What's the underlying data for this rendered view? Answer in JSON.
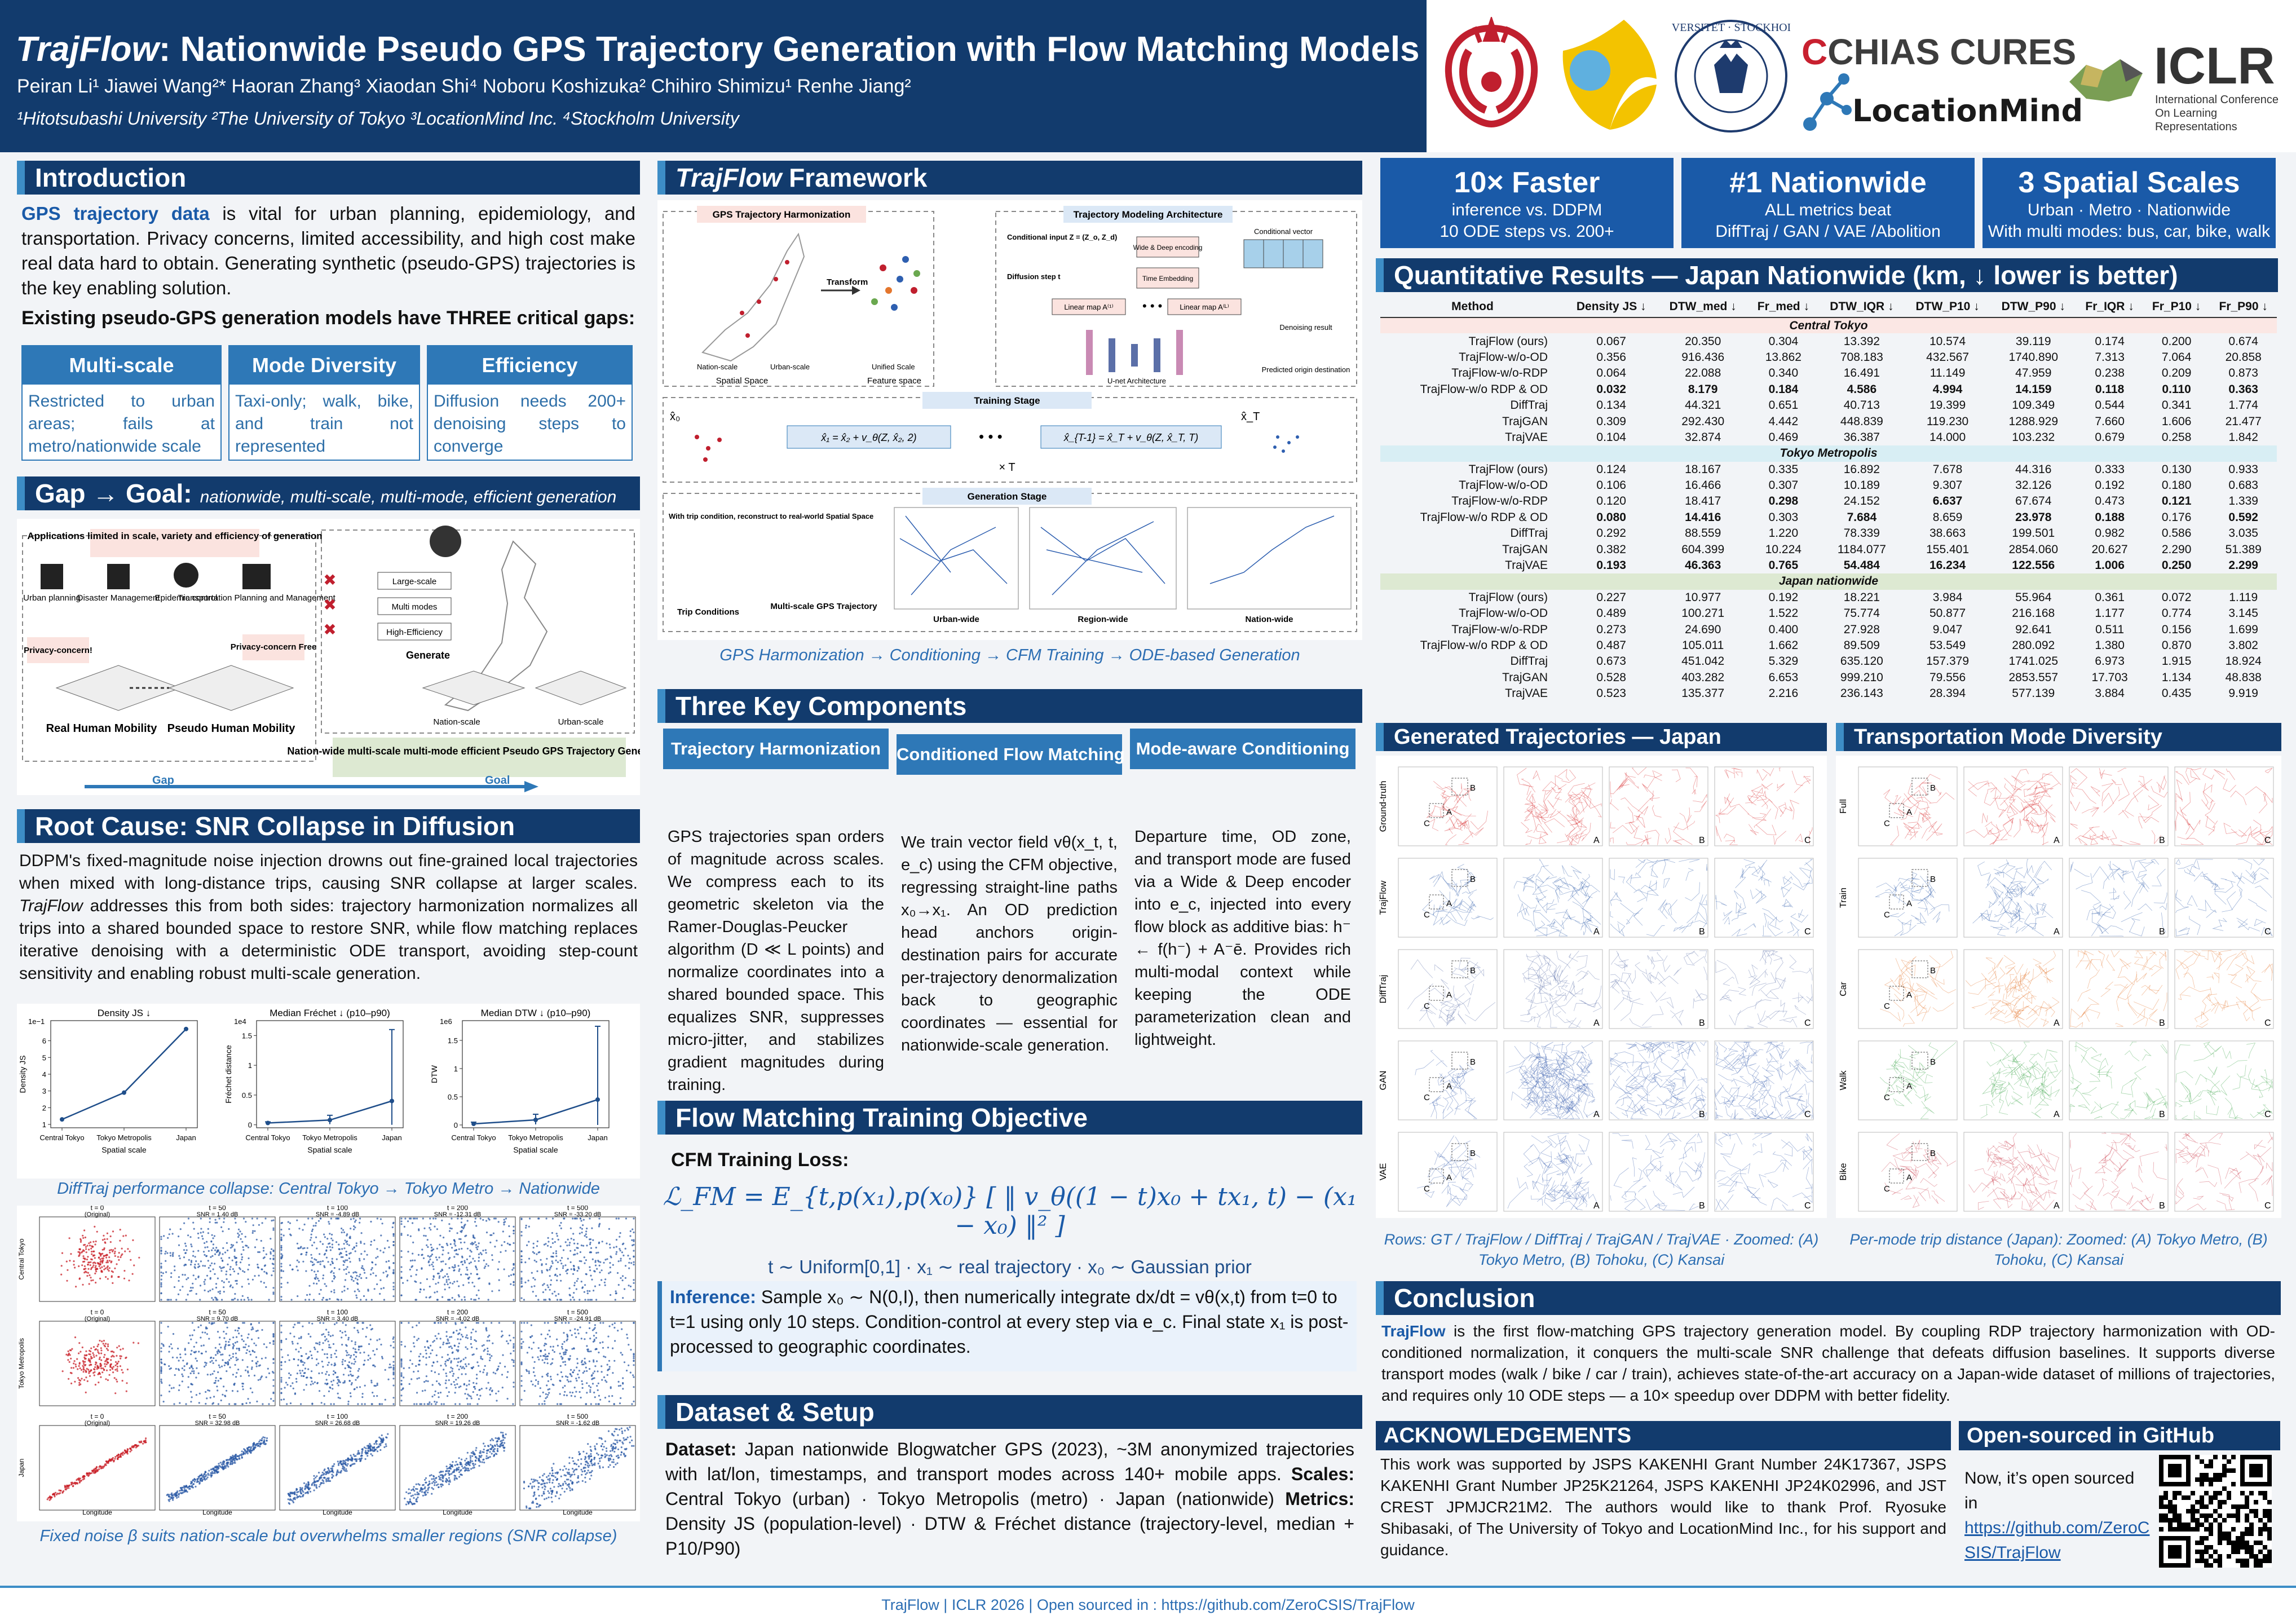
{
  "header": {
    "title_italic": "TrajFlow",
    "title_rest": ": Nationwide Pseudo GPS Trajectory Generation with Flow Matching Models",
    "authors": "Peiran Li¹   Jiawei Wang²*   Haoran Zhang³   Xiaodan Shi⁴   Noboru Koshizuka²   Chihiro Shimizu¹   Renhe Jiang²",
    "affiliations": "¹Hitotsubashi University   ²The University of Tokyo   ³LocationMind Inc.  ⁴Stockholm University",
    "logos": {
      "chias": "CHIAS CURES",
      "chias_c": "C",
      "locationmind": "LocationMind",
      "iclr": "ICLR",
      "iclr_sub": "International Conference On Learning Representations",
      "stockholm_ring": "UNIVERSITET · STOCKHOLMS"
    }
  },
  "intro": {
    "heading": "Introduction",
    "lead": "GPS trajectory data",
    "text": " is vital for urban planning, epidemiology, and transportation. Privacy concerns, limited accessibility, and high cost make real data hard to obtain. Generating synthetic (pseudo-GPS) trajectories is the key enabling solution.",
    "gaps_title": "Existing pseudo-GPS generation models have THREE critical gaps:",
    "gaps": [
      {
        "title": "Multi-scale",
        "text": "Restricted to urban areas; fails at metro/nationwide scale"
      },
      {
        "title": "Mode Diversity",
        "text": "Taxi-only; walk, bike, and train not represented"
      },
      {
        "title": "Efficiency",
        "text": "Diffusion needs 200+ denoising steps to converge"
      }
    ]
  },
  "gapgoal": {
    "heading": "Gap → Goal:",
    "sub": "nationwide, multi-scale, multi-mode, efficient generation",
    "limited": "Applications limited in scale, variety and efficiency of generation",
    "apps": [
      "Urban planning",
      "Disaster Management",
      "Epidemic control",
      "Transportation Planning and Management"
    ],
    "privacy": "Privacy-concern!",
    "privacy_free": "Privacy-concern Free",
    "real": "Real Human Mobility",
    "pseudo": "Pseudo Human Mobility",
    "generate": "Generate",
    "goals": [
      "Large-scale",
      "Multi modes",
      "High-Efficiency"
    ],
    "scales": [
      "Nation-scale",
      "Urban-scale"
    ],
    "goal_box": "Nation-wide multi-scale multi-mode efficient Pseudo GPS Trajectory Generation",
    "gap_label": "Gap",
    "goal_label": "Goal"
  },
  "root": {
    "heading": "Root Cause: SNR Collapse in Diffusion",
    "text_a": "DDPM's fixed-magnitude noise injection drowns out fine-grained local trajectories when mixed with long-distance trips, causing SNR collapse at larger scales. ",
    "text_i": "TrajFlow",
    "text_b": " addresses this from both sides: trajectory harmonization normalizes all trips into a shared bounded space to restore SNR, while flow matching replaces iterative denoising with a deterministic ODE transport, avoiding step-count sensitivity and enabling robust multi-scale generation.",
    "caption1": "DiffTraj performance collapse: Central Tokyo → Tokyo Metro → Nationwide",
    "caption2": "Fixed noise β suits nation-scale but overwhelms smaller regions (SNR collapse)",
    "xticks": [
      "Central Tokyo",
      "Tokyo Metropolis",
      "Japan"
    ],
    "xlabel": "Spatial scale",
    "snr_rows": [
      "Central Tokyo",
      "Tokyo Metropolis",
      "Japan"
    ],
    "snr_cols": [
      "t = 0",
      "t = 50",
      "t = 100",
      "t = 200",
      "t = 500"
    ],
    "snr_original": "(Original)",
    "snr_values": [
      [
        "SNR = 1.40 dB",
        "SNR = -4.89 dB",
        "SNR = -12.31 dB",
        "SNR = -33.20 dB"
      ],
      [
        "SNR = 9.70 dB",
        "SNR = 3.40 dB",
        "SNR = -4.02 dB",
        "SNR = -24.91 dB"
      ],
      [
        "SNR = 32.98 dB",
        "SNR = 26.68 dB",
        "SNR = 19.26 dB",
        "SNR = -1.62 dB"
      ]
    ],
    "snr_xlabel": "Longitude",
    "snr_ylabel": "Latitude"
  },
  "chart_data": [
    {
      "type": "line",
      "title": "Density JS ↓",
      "xlabel": "Spatial scale",
      "ylabel": "Density JS",
      "exponent": "1e−1",
      "categories": [
        "Central Tokyo",
        "Tokyo Metropolis",
        "Japan"
      ],
      "values": [
        1.3,
        2.9,
        6.7
      ],
      "ylim": [
        0.8,
        7.2
      ],
      "yticks": [
        1,
        2,
        3,
        4,
        5,
        6
      ]
    },
    {
      "type": "line",
      "title": "Median Fréchet ↓ (p10–p90)",
      "xlabel": "Spatial scale",
      "ylabel": "Fréchet distance",
      "exponent": "1e4",
      "categories": [
        "Central Tokyo",
        "Tokyo Metropolis",
        "Japan"
      ],
      "values": [
        0.03,
        0.08,
        0.4
      ],
      "err_low": [
        0.0,
        0.01,
        0.0
      ],
      "err_high": [
        0.05,
        0.16,
        1.6
      ],
      "ylim": [
        -0.05,
        1.75
      ],
      "yticks": [
        0.0,
        0.5,
        1.0,
        1.5
      ]
    },
    {
      "type": "line",
      "title": "Median DTW ↓ (p10–p90)",
      "xlabel": "Spatial scale",
      "ylabel": "DTW",
      "exponent": "1e6",
      "categories": [
        "Central Tokyo",
        "Tokyo Metropolis",
        "Japan"
      ],
      "values": [
        0.02,
        0.09,
        0.45
      ],
      "err_low": [
        0.0,
        0.01,
        0.0
      ],
      "err_high": [
        0.05,
        0.19,
        1.75
      ],
      "ylim": [
        -0.05,
        1.85
      ],
      "yticks": [
        0.0,
        0.5,
        1.0,
        1.5
      ]
    }
  ],
  "framework": {
    "heading_i": "TrajFlow",
    "heading_rest": " Framework",
    "harmonization": "GPS Trajectory Harmonization",
    "architecture": "Trajectory Modeling Architecture",
    "transform": "Transform",
    "spaces": [
      "Nation-scale",
      "Urban-scale",
      "Unified Scale"
    ],
    "spatial_space": "Spatial Space",
    "feature_space": "Feature space",
    "cond_input": "Conditional input Z = (Z_o, Z_d)",
    "diffusion_step": "Diffusion step t",
    "wide_deep": "Wide & Deep encoding",
    "time_emb": "Time Embedding",
    "cond_vector": "Conditional vector",
    "linear_map": "Linear map A⁽¹⁾",
    "linear_map2": "Linear map A⁽ᴸ⁾",
    "unet": "U-net Architecture",
    "denoise": "Denoising result",
    "pred_dest": "Predicted origin destination",
    "training": "Training Stage",
    "x0": "x̂₀",
    "xT": "x̂_T",
    "train_eq1": "x̂₁ = x̂₂ + v_θ(Z, x̂₂, 2)",
    "train_eq2": "x̂_{T-1} = x̂_T + v_θ(Z, x̂_T, T)",
    "times_t": "× T",
    "generation": "Generation Stage",
    "gen_note": "With trip condition, reconstruct to real-world Spatial Space",
    "trip_cond": "Trip Conditions",
    "msgps": "Multi-scale GPS Trajectory",
    "gen_scales": [
      "Urban-wide",
      "Region-wide",
      "Nation-wide"
    ],
    "caption": "GPS Harmonization → Conditioning → CFM Training → ODE-based Generation"
  },
  "components": {
    "heading": "Three Key Components",
    "items": [
      {
        "title": "Trajectory Harmonization",
        "text": "GPS trajectories span orders of magnitude across scales. We compress each to its geometric skeleton via the Ramer-Douglas-Peucker algorithm (D ≪ L points) and normalize coordinates into a shared bounded space. This equalizes SNR, suppresses micro-jitter, and stabilizes gradient magnitudes during training."
      },
      {
        "title": "Conditioned Flow Matching",
        "text": "We train vector field vθ(x_t, t, e_c) using the CFM objective, regressing straight-line paths x₀→x₁. An OD prediction head anchors origin-destination pairs for accurate per-trajectory denormalization back to geographic coordinates — essential for nationwide-scale generation."
      },
      {
        "title": "Mode-aware Conditioning",
        "text": "Departure time, OD zone, and transport mode are fused via a Wide & Deep encoder into e_c, injected into every flow block as additive bias: h⁻ ← f(h⁻) + A⁻ē. Provides rich multi-modal context while keeping the ODE parameterization clean and lightweight."
      }
    ]
  },
  "objective": {
    "heading": "Flow Matching Training Objective",
    "loss_label": "CFM Training Loss:",
    "formula": "ℒ_FM = E_{t,p(x₁),p(x₀)} [ ‖ v_θ((1 − t)x₀ + tx₁, t) − (x₁ − x₀) ‖² ]",
    "dist": "t ∼ Uniform[0,1]   ·   x₁ ∼ real trajectory   ·   x₀ ∼ Gaussian prior",
    "inference_label": "Inference:",
    "inference": " Sample x₀ ∼ N(0,I), then numerically integrate dx/dt = vθ(x,t) from t=0 to t=1 using only 10 steps. Condition-control at every step via e_c. Final state x₁ is post-processed to geographic coordinates."
  },
  "dataset": {
    "heading": "Dataset & Setup",
    "l1": "Dataset:",
    "t1": " Japan nationwide Blogwatcher GPS (2023), ~3M anonymized trajectories with lat/lon, timestamps, and transport modes across 140+ mobile apps. ",
    "l2": "Scales:",
    "t2": " Central Tokyo (urban) · Tokyo Metropolis (metro) · Japan (nationwide) ",
    "l3": "Metrics:",
    "t3": " Density JS (population-level) · DTW & Fréchet distance (trajectory-level, median + P10/P90)"
  },
  "stats": [
    {
      "big": "10× Faster",
      "l1": "inference vs. DDPM",
      "l2": "10 ODE steps vs. 200+"
    },
    {
      "big": "#1 Nationwide",
      "l1": "ALL metrics beat",
      "l2": "DiffTraj / GAN / VAE /Abolition"
    },
    {
      "big": "3 Spatial Scales",
      "l1": "Urban · Metro · Nationwide",
      "l2": "With multi modes: bus, car, bike, walk"
    }
  ],
  "results": {
    "heading": "Quantitative Results — Japan Nationwide (km, ↓ lower is better)",
    "columns": [
      "Method",
      "Density JS ↓",
      "DTW_med ↓",
      "Fr_med ↓",
      "DTW_IQR ↓",
      "DTW_P10 ↓",
      "DTW_P90 ↓",
      "Fr_IQR ↓",
      "Fr_P10 ↓",
      "Fr_P90 ↓"
    ],
    "groups": [
      {
        "name": "Central Tokyo",
        "rows": [
          [
            "TrajFlow (ours)",
            "0.067",
            "20.350",
            "0.304",
            "13.392",
            "10.574",
            "39.119",
            "0.174",
            "0.200",
            "0.674"
          ],
          [
            "TrajFlow-w/o-OD",
            "0.356",
            "916.436",
            "13.862",
            "708.183",
            "432.567",
            "1740.890",
            "7.313",
            "7.064",
            "20.858"
          ],
          [
            "TrajFlow-w/o-RDP",
            "0.064",
            "22.088",
            "0.340",
            "16.491",
            "11.149",
            "47.959",
            "0.238",
            "0.209",
            "0.873"
          ],
          [
            "TrajFlow-w/o RDP & OD",
            "0.032",
            "8.179",
            "0.184",
            "4.586",
            "4.994",
            "14.159",
            "0.118",
            "0.110",
            "0.363"
          ],
          [
            "DiffTraj",
            "0.134",
            "44.321",
            "0.651",
            "40.713",
            "19.399",
            "109.349",
            "0.544",
            "0.341",
            "1.774"
          ],
          [
            "TrajGAN",
            "0.309",
            "292.430",
            "4.442",
            "448.839",
            "119.230",
            "1288.929",
            "7.660",
            "1.606",
            "21.477"
          ],
          [
            "TrajVAE",
            "0.104",
            "32.874",
            "0.469",
            "36.387",
            "14.000",
            "103.232",
            "0.679",
            "0.258",
            "1.842"
          ]
        ]
      },
      {
        "name": "Tokyo Metropolis",
        "rows": [
          [
            "TrajFlow (ours)",
            "0.124",
            "18.167",
            "0.335",
            "16.892",
            "7.678",
            "44.316",
            "0.333",
            "0.130",
            "0.933"
          ],
          [
            "TrajFlow-w/o-OD",
            "0.106",
            "16.466",
            "0.307",
            "10.189",
            "9.307",
            "32.126",
            "0.192",
            "0.180",
            "0.683"
          ],
          [
            "TrajFlow-w/o-RDP",
            "0.120",
            "18.417",
            "0.298",
            "24.152",
            "6.637",
            "67.674",
            "0.473",
            "0.121",
            "1.339"
          ],
          [
            "TrajFlow-w/o RDP & OD",
            "0.080",
            "14.416",
            "0.303",
            "7.684",
            "8.659",
            "23.978",
            "0.188",
            "0.176",
            "0.592"
          ],
          [
            "DiffTraj",
            "0.292",
            "88.559",
            "1.220",
            "78.339",
            "38.663",
            "199.501",
            "0.982",
            "0.586",
            "3.035"
          ],
          [
            "TrajGAN",
            "0.382",
            "604.399",
            "10.224",
            "1184.077",
            "155.401",
            "2854.060",
            "20.627",
            "2.290",
            "51.389"
          ],
          [
            "TrajVAE",
            "0.193",
            "46.363",
            "0.765",
            "54.484",
            "16.234",
            "122.556",
            "1.006",
            "0.250",
            "2.299"
          ]
        ]
      },
      {
        "name": "Japan nationwide",
        "rows": [
          [
            "TrajFlow (ours)",
            "0.227",
            "10.977",
            "0.192",
            "18.221",
            "3.984",
            "55.964",
            "0.361",
            "0.072",
            "1.119"
          ],
          [
            "TrajFlow-w/o-OD",
            "0.489",
            "100.271",
            "1.522",
            "75.774",
            "50.877",
            "216.168",
            "1.177",
            "0.774",
            "3.145"
          ],
          [
            "TrajFlow-w/o-RDP",
            "0.273",
            "24.690",
            "0.400",
            "27.928",
            "9.047",
            "92.641",
            "0.511",
            "0.156",
            "1.699"
          ],
          [
            "TrajFlow-w/o RDP & OD",
            "0.487",
            "105.011",
            "1.662",
            "89.509",
            "53.549",
            "280.092",
            "1.380",
            "0.870",
            "3.802"
          ],
          [
            "DiffTraj",
            "0.673",
            "451.042",
            "5.329",
            "635.120",
            "157.379",
            "1741.025",
            "6.973",
            "1.915",
            "18.924"
          ],
          [
            "TrajGAN",
            "0.528",
            "403.282",
            "6.653",
            "999.210",
            "79.556",
            "2853.557",
            "17.703",
            "1.134",
            "48.838"
          ],
          [
            "TrajVAE",
            "0.523",
            "135.377",
            "2.216",
            "236.143",
            "28.394",
            "577.139",
            "3.884",
            "0.435",
            "9.919"
          ]
        ]
      }
    ],
    "bold": [
      [
        3,
        1
      ],
      [
        3,
        2
      ],
      [
        3,
        3
      ],
      [
        3,
        4
      ],
      [
        3,
        5
      ],
      [
        3,
        6
      ],
      [
        3,
        7
      ],
      [
        3,
        8
      ],
      [
        3,
        9
      ],
      [
        10,
        3
      ],
      [
        10,
        5
      ],
      [
        10,
        8
      ],
      [
        11,
        1
      ],
      [
        11,
        2
      ],
      [
        11,
        4
      ],
      [
        11,
        6
      ],
      [
        11,
        7
      ],
      [
        11,
        9
      ],
      [
        14,
        1
      ],
      [
        14,
        2
      ],
      [
        14,
        3
      ],
      [
        14,
        4
      ],
      [
        14,
        5
      ],
      [
        14,
        6
      ],
      [
        14,
        7
      ],
      [
        14,
        8
      ],
      [
        14,
        9
      ]
    ]
  },
  "generated": {
    "heading": "Generated Trajectories — Japan",
    "rows": [
      "Ground-truth",
      "TrajFlow",
      "DiffTraj",
      "GAN",
      "VAE"
    ],
    "colors": [
      "#d6282b",
      "#2a58a8",
      "#5b6fa8",
      "#3a5fb0",
      "#3a5fb0"
    ],
    "caption": "Rows: GT / TrajFlow / DiffTraj / TrajGAN / TrajVAE · Zoomed: (A) Tokyo Metro, (B) Tohoku, (C) Kansai",
    "zoom_labels": [
      "A",
      "B",
      "C"
    ]
  },
  "modes": {
    "heading": "Transportation Mode Diversity",
    "rows": [
      "Full",
      "Train",
      "Car",
      "Walk",
      "Bike"
    ],
    "colors": [
      "#d6282b",
      "#2a58a8",
      "#e4762d",
      "#3aa447",
      "#c9394a"
    ],
    "caption": "Per-mode trip distance (Japan): Zoomed: (A) Tokyo Metro, (B) Tohoku, (C) Kansai"
  },
  "conclusion": {
    "heading": "Conclusion",
    "lead": "TrajFlow",
    "text": " is the first flow-matching GPS trajectory generation model. By coupling RDP trajectory harmonization with OD-conditioned normalization, it conquers the multi-scale SNR challenge that defeats diffusion baselines. It supports diverse transport modes (walk / bike / car / train), achieves state-of-the-art accuracy on a Japan-wide dataset of millions of trajectories, and requires only 10 ODE steps — a 10× speedup over DDPM with better fidelity."
  },
  "ack": {
    "heading": "ACKNOWLEDGEMENTS",
    "text": "This work was supported by JSPS KAKENHI Grant Number 24K17367, JSPS KAKENHI Grant Number JP25K21264, JSPS KAKENHI JP24K02996, and JST CREST JPMJCR21M2. The authors would like to thank Prof. Ryosuke Shibasaki, of The University of Tokyo and LocationMind Inc., for his support and guidance."
  },
  "github": {
    "heading": "Open-sourced in GitHub",
    "text": "Now, it’s open sourced in",
    "link": "https://github.com/ZeroCSIS/TrajFlow"
  },
  "footer": "TrajFlow   |   ICLR 2026   |   Open sourced in : https://github.com/ZeroCSIS/TrajFlow"
}
